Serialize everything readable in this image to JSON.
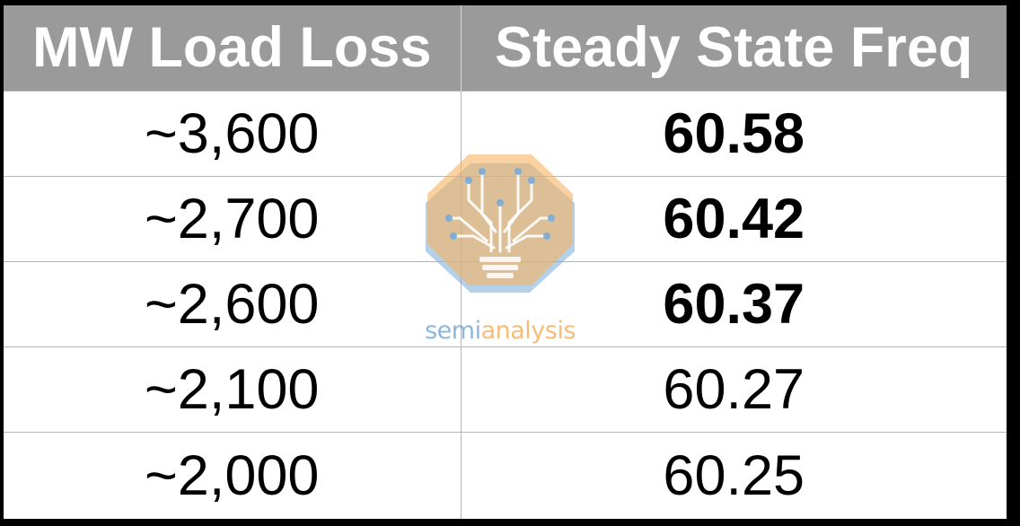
{
  "chart_data": {
    "type": "table",
    "columns": [
      "MW Load Loss",
      "Steady State Freq"
    ],
    "rows": [
      {
        "load_loss": "~3,600",
        "freq": "60.58",
        "bold": true
      },
      {
        "load_loss": "~2,700",
        "freq": "60.42",
        "bold": true
      },
      {
        "load_loss": "~2,600",
        "freq": "60.37",
        "bold": true
      },
      {
        "load_loss": "~2,100",
        "freq": "60.27",
        "bold": false
      },
      {
        "load_loss": "~2,000",
        "freq": "60.25",
        "bold": false
      }
    ]
  },
  "watermark": {
    "brand_semi": "semi",
    "brand_analysis": "analysis",
    "icon": "lightbulb-circuit-logo",
    "colors": {
      "orange": "#f6b260",
      "blue": "#78aad7"
    }
  },
  "colors": {
    "header_bg": "#9a9a9a",
    "header_text": "#ffffff",
    "cell_text": "#000000",
    "grid": "#b5b5b5"
  }
}
